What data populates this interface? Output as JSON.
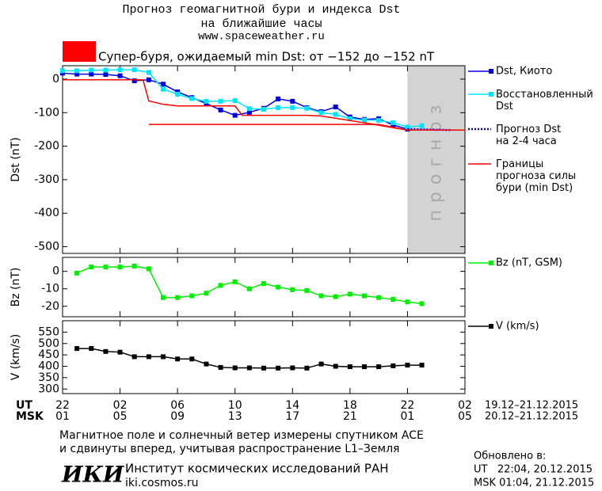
{
  "header": {
    "title": "Прогноз геомагнитной бури и индекса Dst",
    "subtitle": "на ближайшие часы",
    "url": "www.spaceweather.ru"
  },
  "alert": {
    "color": "#ff0000",
    "text": "Супер-буря, ожидаемый min Dst: от −152 до −152 nT"
  },
  "chart_data": [
    {
      "type": "line",
      "y_label": "Dst (nT)",
      "xlim": [
        0,
        28
      ],
      "ylim": [
        -520,
        40
      ],
      "yticks": [
        0,
        -100,
        -200,
        -300,
        -400,
        -500
      ],
      "forecast_region": {
        "x": [
          24,
          28
        ],
        "label": "прогноз",
        "color": "#d3d3d3"
      },
      "series": [
        {
          "name": "Dst, Киото",
          "color": "#0000dd",
          "marker": "square",
          "x": [
            0,
            1,
            2,
            3,
            4,
            5,
            6,
            7,
            8,
            9,
            10,
            11,
            12,
            13,
            14,
            15,
            16,
            17,
            18,
            19,
            20,
            21,
            22,
            23,
            24
          ],
          "values": [
            18,
            15,
            15,
            14,
            10,
            -5,
            -2,
            -15,
            -38,
            -55,
            -73,
            -92,
            -108,
            -99,
            -87,
            -59,
            -66,
            -85,
            -97,
            -83,
            -113,
            -120,
            -118,
            -137,
            -149
          ]
        },
        {
          "name": "Восстановленный\nDst",
          "color": "#00e5ff",
          "marker": "square",
          "x": [
            0,
            1,
            2,
            3,
            4,
            5,
            6,
            7,
            8,
            9,
            10,
            11,
            12,
            13,
            14,
            15,
            16,
            17,
            18,
            19,
            20,
            21,
            22,
            23,
            24,
            25
          ],
          "values": [
            25,
            25,
            27,
            27,
            28,
            28,
            20,
            -30,
            -45,
            -58,
            -66,
            -66,
            -64,
            -88,
            -90,
            -85,
            -85,
            -87,
            -100,
            -105,
            -118,
            -122,
            -123,
            -130,
            -143,
            -139
          ]
        },
        {
          "name": "Прогноз Dst\nна 2-4 часа",
          "color": "#0000dd",
          "dash": "dotted",
          "x": [
            24,
            27
          ],
          "values": [
            -149,
            -152
          ]
        },
        {
          "name": "Границы\nпрогноза силы\nбури (min Dst)",
          "color": "#ff0000",
          "x": [
            0,
            5.6,
            6,
            7,
            8,
            12,
            12.5,
            17,
            18,
            21,
            23,
            24,
            28
          ],
          "values": [
            -2,
            -2,
            -65,
            -75,
            -80,
            -80,
            -108,
            -108,
            -110,
            -130,
            -145,
            -152,
            -152
          ]
        },
        {
          "color": "#ff0000",
          "x": [
            6,
            22,
            24,
            28
          ],
          "values": [
            -135,
            -135,
            -152,
            -152
          ]
        }
      ]
    },
    {
      "type": "line",
      "y_label": "Bz (nT)",
      "xlim": [
        0,
        28
      ],
      "ylim": [
        -26,
        8
      ],
      "yticks": [
        0,
        -10,
        -20
      ],
      "series": [
        {
          "name": "Bz (nT, GSM)",
          "color": "#00ee00",
          "marker": "square",
          "x": [
            1,
            2,
            3,
            4,
            5,
            6,
            7,
            8,
            9,
            10,
            11,
            12,
            13,
            14,
            15,
            16,
            17,
            18,
            19,
            20,
            21,
            22,
            23,
            24,
            25
          ],
          "values": [
            -1,
            2.5,
            2.5,
            2.5,
            3,
            1.5,
            -15,
            -15,
            -14,
            -12.5,
            -8,
            -6,
            -10,
            -7,
            -9,
            -10.5,
            -11,
            -14,
            -14.5,
            -13,
            -14,
            -15,
            -16,
            -17.5,
            -18.5
          ]
        }
      ]
    },
    {
      "type": "line",
      "y_label": "V (km/s)",
      "xlim": [
        0,
        28
      ],
      "ylim": [
        280,
        600
      ],
      "yticks": [
        300,
        350,
        400,
        450,
        500,
        550
      ],
      "series": [
        {
          "name": "V (km/s)",
          "color": "#000000",
          "marker": "square",
          "x": [
            1,
            2,
            3,
            4,
            5,
            6,
            7,
            8,
            9,
            10,
            11,
            12,
            13,
            14,
            15,
            16,
            17,
            18,
            19,
            20,
            21,
            22,
            23,
            24,
            25
          ],
          "values": [
            478,
            478,
            465,
            462,
            442,
            442,
            442,
            432,
            432,
            410,
            395,
            393,
            393,
            392,
            392,
            393,
            392,
            410,
            400,
            398,
            398,
            398,
            402,
            405,
            405
          ]
        }
      ],
      "x_row_labels": [
        "UT",
        "MSK"
      ],
      "x_ranges": [
        "19.12–21.12.2015",
        "20.12–21.12.2015"
      ],
      "xticks": [
        {
          "value": 0,
          "label": "22"
        },
        {
          "value": 4,
          "label": "02"
        },
        {
          "value": 8,
          "label": "06"
        },
        {
          "value": 12,
          "label": "10"
        },
        {
          "value": 16,
          "label": "14"
        },
        {
          "value": 20,
          "label": "18"
        },
        {
          "value": 24,
          "label": "22"
        },
        {
          "value": 28,
          "label": "02"
        }
      ],
      "xticks_msk": [
        {
          "value": 0,
          "label": "01"
        },
        {
          "value": 4,
          "label": "05"
        },
        {
          "value": 8,
          "label": "09"
        },
        {
          "value": 12,
          "label": "13"
        },
        {
          "value": 16,
          "label": "17"
        },
        {
          "value": 20,
          "label": "21"
        },
        {
          "value": 24,
          "label": "01"
        },
        {
          "value": 28,
          "label": "05"
        }
      ]
    }
  ],
  "footer": {
    "note": [
      "Магнитное поле и солнечный ветер измерены спутником ACE",
      "и сдвинуты вперед, учитывая распространение L1–Земля"
    ],
    "logo": "ИКИ",
    "institute": "Институт космических исследований РАН",
    "site": "iki.cosmos.ru",
    "updated": [
      "Обновлено в:",
      "UT   22:04, 20.12.2015",
      "MSK 01:04, 21.12.2015"
    ]
  }
}
